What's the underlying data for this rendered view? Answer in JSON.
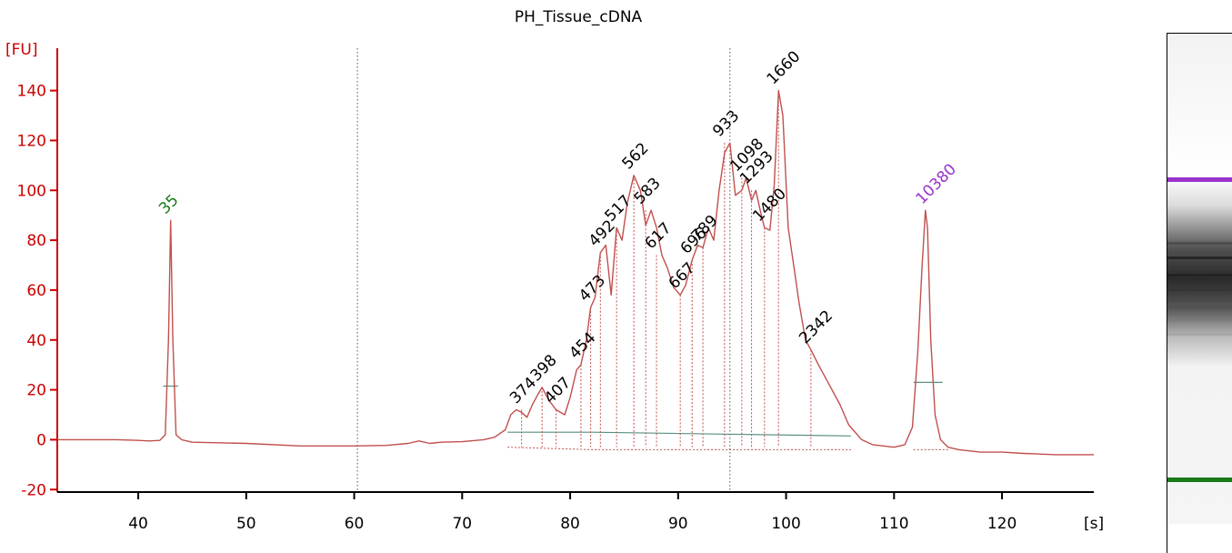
{
  "chart_data": {
    "type": "line",
    "title": "PH_Tissue_cDNA",
    "ylabel": "[FU]",
    "xlabel": "[s]",
    "xlim": [
      32.5,
      128.5
    ],
    "ylim": [
      -21,
      157
    ],
    "yticks": [
      -20,
      0,
      20,
      40,
      60,
      80,
      100,
      120,
      140
    ],
    "xticks": [
      40,
      50,
      60,
      70,
      80,
      90,
      100,
      110,
      120
    ],
    "colors": {
      "trace": "#c0504d",
      "axis": "#cc0000",
      "marker_low": "#1a7a1a",
      "marker_high": "#9933cc",
      "baseline": "#5a9080"
    },
    "series": [
      {
        "x": [
          32.5,
          35,
          38,
          40,
          41,
          42,
          42.5,
          42.8,
          43,
          43.2,
          43.5,
          44,
          45,
          47,
          50,
          55,
          60,
          63,
          65,
          66,
          67,
          68,
          70,
          72,
          73,
          74,
          74.5,
          75,
          75.5,
          76,
          76.5,
          77,
          77.4,
          78,
          78.7,
          79.5,
          80,
          80.6,
          81,
          81.5,
          81.9,
          82.3,
          82.8,
          83.3,
          83.8,
          84.3,
          84.8,
          85.3,
          85.9,
          86.5,
          87,
          87.5,
          88,
          88.5,
          89,
          89.6,
          90.2,
          90.7,
          91.3,
          91.8,
          92.3,
          92.8,
          93.3,
          93.8,
          94.3,
          94.8,
          95.3,
          95.9,
          96.3,
          96.8,
          97.2,
          97.6,
          98,
          98.5,
          98.9,
          99.3,
          99.7,
          100.2,
          100.7,
          101.2,
          101.8,
          102.3,
          103,
          104,
          105,
          105.8,
          107,
          108,
          110,
          111,
          111.7,
          112.2,
          112.6,
          112.9,
          113.1,
          113.4,
          113.8,
          114.3,
          115,
          116,
          118,
          120,
          122,
          125,
          128.5
        ],
        "y": [
          0,
          0,
          0,
          -0.3,
          -0.5,
          -0.3,
          2,
          40,
          88,
          40,
          2,
          0,
          -1,
          -1.2,
          -1.5,
          -2.5,
          -2.5,
          -2.3,
          -1.5,
          -0.5,
          -1.5,
          -1,
          -0.8,
          0,
          1,
          4,
          10,
          12,
          11,
          9,
          14,
          18,
          21,
          16,
          12,
          10,
          17,
          28,
          30,
          40,
          53,
          57,
          75,
          78,
          58,
          85,
          80,
          95,
          106,
          100,
          86,
          92,
          85,
          74,
          69,
          61,
          58,
          62,
          72,
          78,
          77,
          85,
          80,
          100,
          115,
          119,
          98,
          100,
          105,
          96,
          100,
          92,
          85,
          84,
          102,
          140,
          130,
          85,
          70,
          55,
          40,
          36,
          30,
          22,
          14,
          6,
          0,
          -2,
          -3,
          -2,
          5,
          35,
          70,
          92,
          85,
          40,
          10,
          0,
          -3,
          -4,
          -5,
          -5,
          -5.5,
          -6,
          -6
        ]
      }
    ],
    "peaks": [
      {
        "label": "35",
        "x": 43.0,
        "y": 88,
        "kind": "marker_low"
      },
      {
        "label": "374",
        "x": 75.5,
        "y": 12
      },
      {
        "label": "398",
        "x": 77.4,
        "y": 21
      },
      {
        "label": "407",
        "x": 78.7,
        "y": 12
      },
      {
        "label": "454",
        "x": 81.0,
        "y": 30
      },
      {
        "label": "473",
        "x": 81.9,
        "y": 53
      },
      {
        "label": "492",
        "x": 82.8,
        "y": 75
      },
      {
        "label": "517",
        "x": 84.3,
        "y": 85
      },
      {
        "label": "562",
        "x": 85.9,
        "y": 106
      },
      {
        "label": "583",
        "x": 87.0,
        "y": 92
      },
      {
        "label": "617",
        "x": 88.0,
        "y": 74
      },
      {
        "label": "667",
        "x": 90.2,
        "y": 58
      },
      {
        "label": "696",
        "x": 91.3,
        "y": 72
      },
      {
        "label": "789",
        "x": 92.3,
        "y": 77
      },
      {
        "label": "933",
        "x": 94.3,
        "y": 119
      },
      {
        "label": "1098",
        "x": 95.9,
        "y": 105
      },
      {
        "label": "1293",
        "x": 96.8,
        "y": 100
      },
      {
        "label": "1480",
        "x": 98.0,
        "y": 85
      },
      {
        "label": "1660",
        "x": 99.3,
        "y": 140
      },
      {
        "label": "2342",
        "x": 102.3,
        "y": 36
      },
      {
        "label": "10380",
        "x": 113.1,
        "y": 92,
        "kind": "marker_high"
      }
    ],
    "dotted_verticals": [
      60.3,
      94.8
    ],
    "baseline_segments": [
      {
        "x": [
          74.2,
          82.0
        ],
        "y": [
          3,
          3
        ]
      },
      {
        "x": [
          82.0,
          106.0
        ],
        "y": [
          3,
          1.5
        ]
      },
      {
        "x": [
          111.8,
          114.5
        ],
        "y": [
          23,
          23
        ]
      },
      {
        "x": [
          42.3,
          43.7
        ],
        "y": [
          21.5,
          21.5
        ]
      }
    ],
    "gel": {
      "bands": [
        {
          "pos": 0.293,
          "color": "#9933cc",
          "weight": 1
        },
        {
          "pos": 0.425,
          "color": "#444",
          "weight": 0.7
        },
        {
          "pos": 0.455,
          "color": "#222",
          "weight": 0.9
        },
        {
          "pos": 0.49,
          "color": "#222",
          "weight": 0.9
        },
        {
          "pos": 0.52,
          "color": "#333",
          "weight": 0.8
        },
        {
          "pos": 0.55,
          "color": "#555",
          "weight": 0.6
        },
        {
          "pos": 0.58,
          "color": "#777",
          "weight": 0.5
        },
        {
          "pos": 0.61,
          "color": "#999",
          "weight": 0.4
        },
        {
          "pos": 0.905,
          "color": "#1a7a1a",
          "weight": 1
        }
      ]
    }
  }
}
